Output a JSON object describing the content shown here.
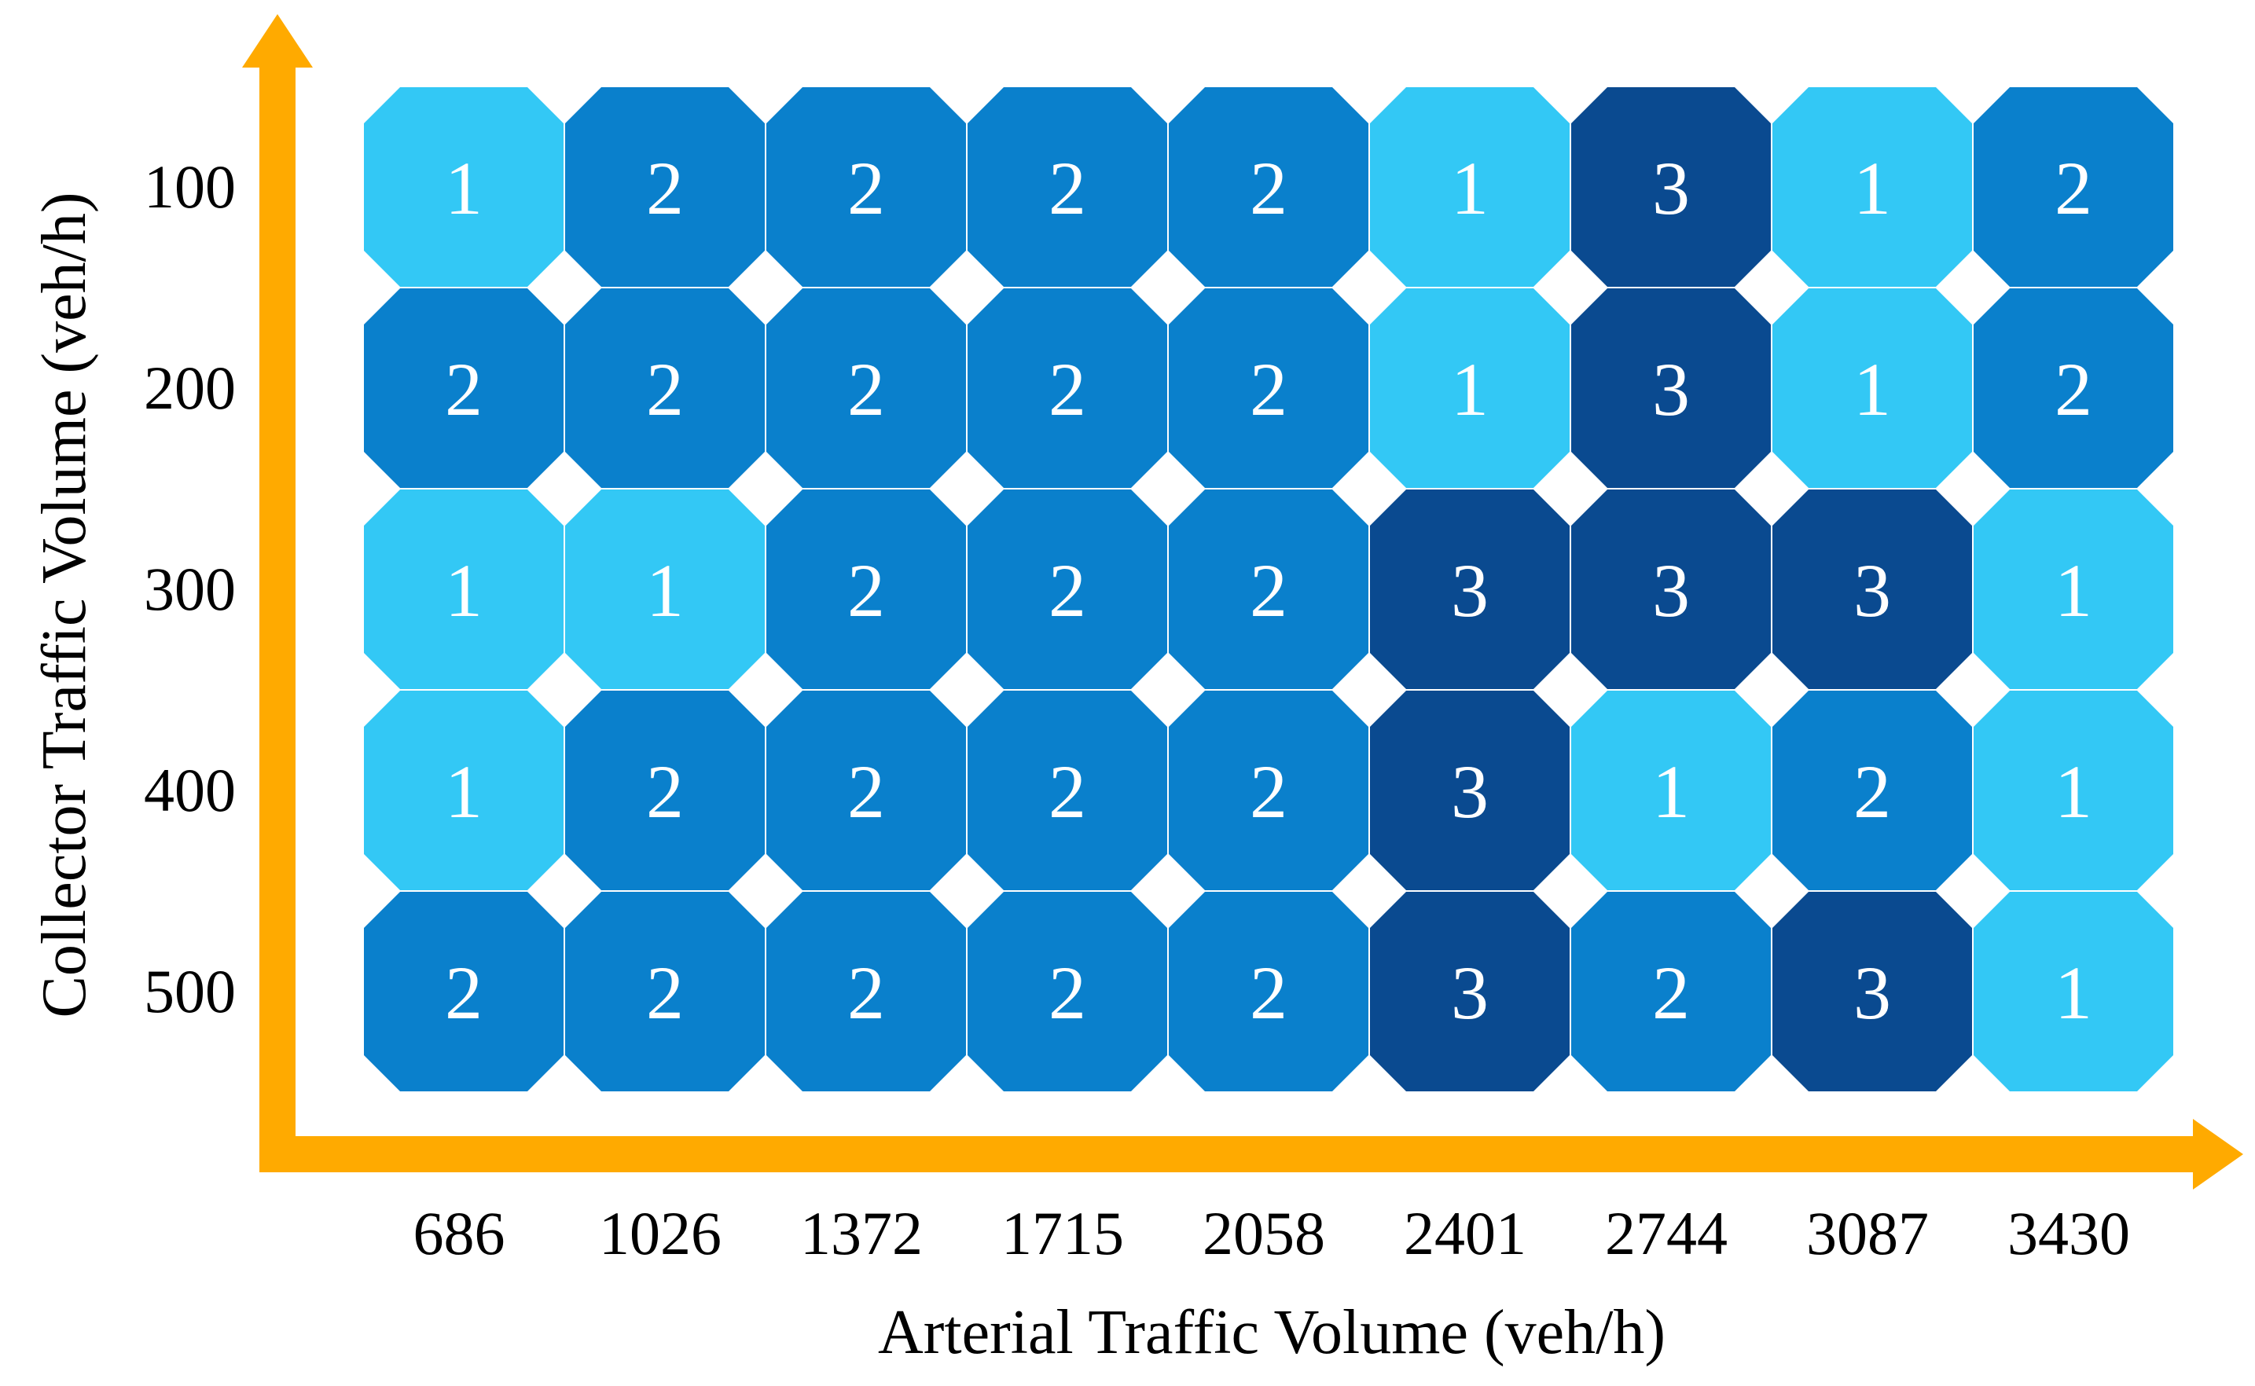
{
  "chart_data": {
    "type": "heatmap",
    "title": "",
    "xlabel": "Arterial Traffic Volume (veh/h)",
    "ylabel": "Collector Traffic Volume (veh/h)",
    "x": [
      686,
      1026,
      1372,
      1715,
      2058,
      2401,
      2744,
      3087,
      3430
    ],
    "y": [
      100,
      200,
      300,
      400,
      500
    ],
    "values": [
      [
        1,
        2,
        2,
        2,
        2,
        1,
        3,
        1,
        2
      ],
      [
        2,
        2,
        2,
        2,
        2,
        1,
        3,
        1,
        2
      ],
      [
        1,
        1,
        2,
        2,
        2,
        3,
        3,
        3,
        1
      ],
      [
        1,
        2,
        2,
        2,
        2,
        3,
        1,
        2,
        1
      ],
      [
        2,
        2,
        2,
        2,
        2,
        3,
        2,
        3,
        1
      ]
    ],
    "colors": {
      "1": "#33c8f5",
      "2": "#0a80cc",
      "3": "#0a4a90",
      "axis": "#ffaa00"
    },
    "grid": false,
    "legend": "none"
  }
}
